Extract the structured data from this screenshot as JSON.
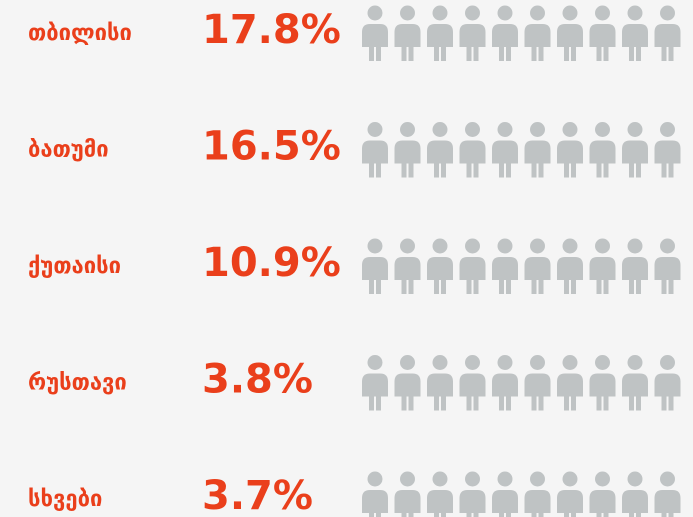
{
  "chart_data": {
    "type": "pictogram",
    "categories": [
      "თბილისი",
      "ბათუმი",
      "ქუთაისი",
      "რუსთავი",
      "სხვები"
    ],
    "values": [
      17.8,
      16.5,
      10.9,
      3.8,
      3.7
    ],
    "value_labels": [
      "17.8%",
      "16.5%",
      "10.9%",
      "3.8%",
      "3.7%"
    ],
    "colors": [
      "#f0ae93",
      "#f4a36f",
      "#f0ae93",
      "#f0ae93",
      "#f0ae93"
    ],
    "base_color": "#bfc3c4",
    "label_color": "#ea3f1b",
    "xlim": [
      0,
      100
    ]
  }
}
